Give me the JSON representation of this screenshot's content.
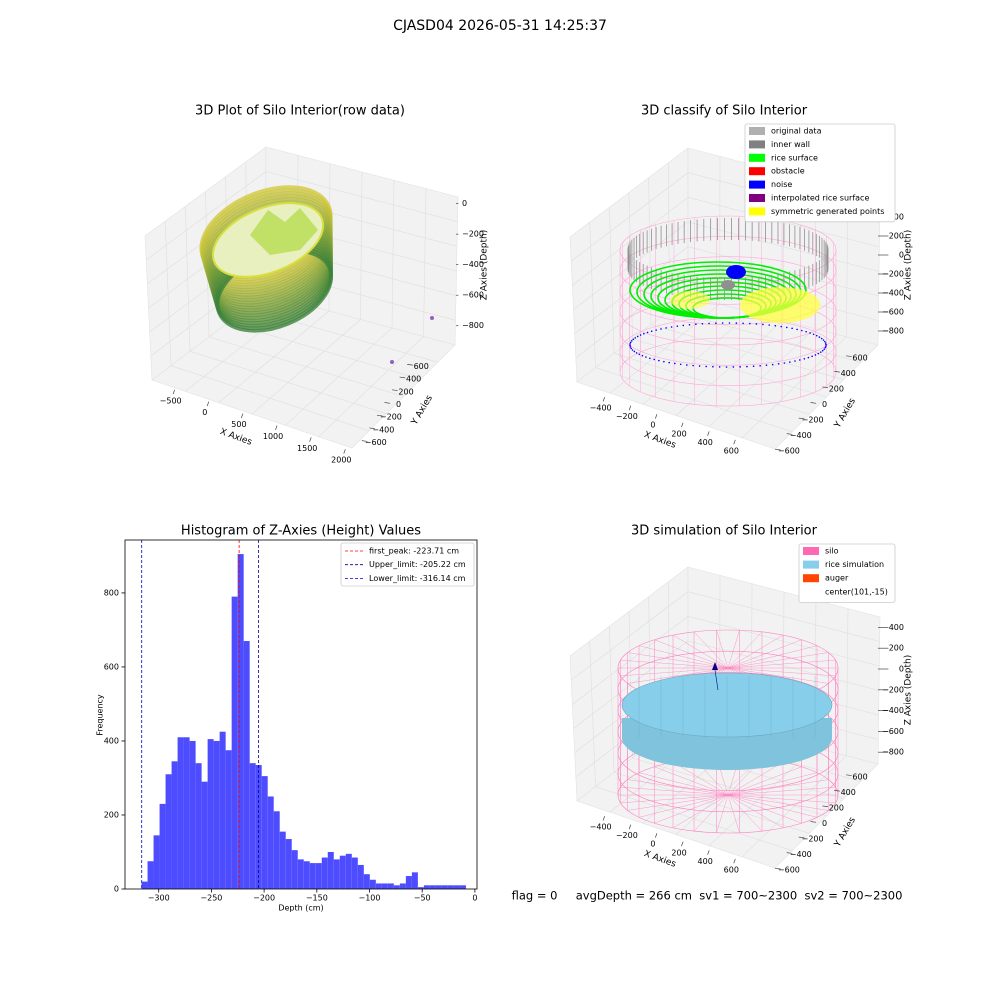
{
  "title": "CJASD04 2026-05-31 14:25:37",
  "chart_data": [
    {
      "type": "scatter3d",
      "title": "3D Plot of Silo Interior(row data)",
      "xlabel": "X Axies",
      "ylabel": "Y Axies",
      "zlabel": "Z Axies (Depth)",
      "xlim": [
        -700,
        2200
      ],
      "xticks": [
        {
          "value": -500,
          "label": "−500"
        },
        0,
        500,
        1000,
        1500,
        2000
      ],
      "ylim": [
        -700,
        700
      ],
      "yticks": [
        {
          "value": -600,
          "label": "−600"
        },
        {
          "value": -400,
          "label": "−400"
        },
        {
          "value": -200,
          "label": "−200"
        },
        0,
        200,
        400,
        600
      ],
      "zlim": [
        -900,
        50
      ],
      "zticks": [
        0,
        {
          "value": -200,
          "label": "−200"
        },
        {
          "value": -400,
          "label": "−400"
        },
        {
          "value": -600,
          "label": "−600"
        },
        {
          "value": -800,
          "label": "−800"
        }
      ]
    },
    {
      "type": "scatter3d",
      "title": "3D classify of Silo Interior",
      "xlabel": "X Axies",
      "ylabel": "Y Axies",
      "zlabel": "Z Axies (Depth)",
      "xlim": [
        -520,
        720
      ],
      "xticks": [
        {
          "value": -400,
          "label": "−400"
        },
        {
          "value": -200,
          "label": "−200"
        },
        0,
        200,
        400,
        600
      ],
      "ylim": [
        -700,
        700
      ],
      "yticks": [
        {
          "value": -600,
          "label": "−600"
        },
        {
          "value": -400,
          "label": "−400"
        },
        {
          "value": -200,
          "label": "−200"
        },
        0,
        200,
        400,
        600
      ],
      "zlim": [
        -1000,
        500
      ],
      "zticks": [
        400,
        200,
        0,
        {
          "value": -200,
          "label": "−200"
        },
        {
          "value": -400,
          "label": "−400"
        },
        {
          "value": -600,
          "label": "−600"
        },
        {
          "value": -800,
          "label": "−800"
        }
      ],
      "legend": [
        {
          "name": "original data",
          "color": "#b0b0b0"
        },
        {
          "name": "inner wall",
          "color": "#808080"
        },
        {
          "name": "rice surface",
          "color": "#00ff00"
        },
        {
          "name": "obstacle",
          "color": "#ff0000"
        },
        {
          "name": "noise",
          "color": "#0000ff"
        },
        {
          "name": "interpolated rice surface",
          "color": "#800080"
        },
        {
          "name": "symmetric generated points",
          "color": "#ffff00"
        }
      ]
    },
    {
      "type": "histogram",
      "title": "Histogram of Z-Axies (Height) Values",
      "xlabel": "Depth (cm)",
      "ylabel": "Frequency",
      "color": "#4d4dff",
      "bins": [
        -316.3,
        -310.6,
        -304.9,
        -299.2,
        -293.5,
        -287.8,
        -282.1,
        -276.4,
        -270.7,
        -265.0,
        -259.3,
        -253.6,
        -247.9,
        -242.2,
        -236.5,
        -230.8,
        -225.1,
        -219.4,
        -213.7,
        -208.0,
        -202.3,
        -196.6,
        -190.9,
        -185.2,
        -179.5,
        -173.8,
        -168.1,
        -162.4,
        -156.7,
        -151.0,
        -145.3,
        -139.6,
        -133.9,
        -128.2,
        -122.5,
        -116.8,
        -111.1,
        -105.4,
        -99.7,
        -94.0,
        -88.3,
        -82.6,
        -76.9,
        -71.2,
        -65.5,
        -59.8,
        -54.1,
        -48.4,
        -42.7,
        -37.0,
        -31.3,
        -25.6,
        -19.9,
        -14.2,
        -8.5
      ],
      "values": [
        20,
        75,
        145,
        230,
        310,
        345,
        410,
        410,
        400,
        340,
        290,
        405,
        400,
        425,
        375,
        790,
        905,
        670,
        340,
        335,
        305,
        250,
        210,
        155,
        135,
        105,
        80,
        75,
        70,
        70,
        85,
        100,
        80,
        90,
        95,
        85,
        65,
        40,
        25,
        15,
        15,
        15,
        10,
        15,
        35,
        45,
        5,
        10,
        10,
        10,
        10,
        10,
        10,
        10
      ],
      "xlim": [
        -332,
        2
      ],
      "xticks": [
        {
          "value": -300,
          "label": "−300"
        },
        {
          "value": -250,
          "label": "−250"
        },
        {
          "value": -200,
          "label": "−200"
        },
        {
          "value": -150,
          "label": "−150"
        },
        {
          "value": -100,
          "label": "−100"
        },
        {
          "value": -50,
          "label": "−50"
        },
        0
      ],
      "ylim": [
        0,
        943
      ],
      "yticks": [
        0,
        200,
        400,
        600,
        800
      ],
      "vlines": [
        {
          "name": "first_peak: -223.71 cm",
          "value": -223.71,
          "color": "#ff0000"
        },
        {
          "name": "Upper_limit: -205.22 cm",
          "value": -205.22,
          "color": "#00008b"
        },
        {
          "name": "Lower_limit: -316.14 cm",
          "value": -316.14,
          "color": "#0000cd"
        }
      ]
    },
    {
      "type": "surface3d",
      "title": "3D simulation of Silo Interior",
      "xlabel": "X Axies",
      "ylabel": "Y Axies",
      "zlabel": "Z Axies (Depth)",
      "xlim": [
        -520,
        720
      ],
      "xticks": [
        {
          "value": -400,
          "label": "−400"
        },
        {
          "value": -200,
          "label": "−200"
        },
        0,
        200,
        400,
        600
      ],
      "ylim": [
        -700,
        700
      ],
      "yticks": [
        {
          "value": -600,
          "label": "−600"
        },
        {
          "value": -400,
          "label": "−400"
        },
        {
          "value": -200,
          "label": "−200"
        },
        0,
        200,
        400,
        600
      ],
      "zlim": [
        -1000,
        500
      ],
      "zticks": [
        400,
        200,
        0,
        {
          "value": -200,
          "label": "−200"
        },
        {
          "value": -400,
          "label": "−400"
        },
        {
          "value": -600,
          "label": "−600"
        },
        {
          "value": -800,
          "label": "−800"
        }
      ],
      "legend": [
        {
          "name": "silo",
          "color": "#ff69b4"
        },
        {
          "name": "rice simulation",
          "color": "#87ceeb"
        },
        {
          "name": "auger",
          "color": "#ff4500"
        },
        {
          "name": "center(101,-15)"
        }
      ]
    }
  ],
  "footer": "flag = 0     avgDepth = 266 cm  sv1 = 700~2300  sv2 = 700~2300"
}
